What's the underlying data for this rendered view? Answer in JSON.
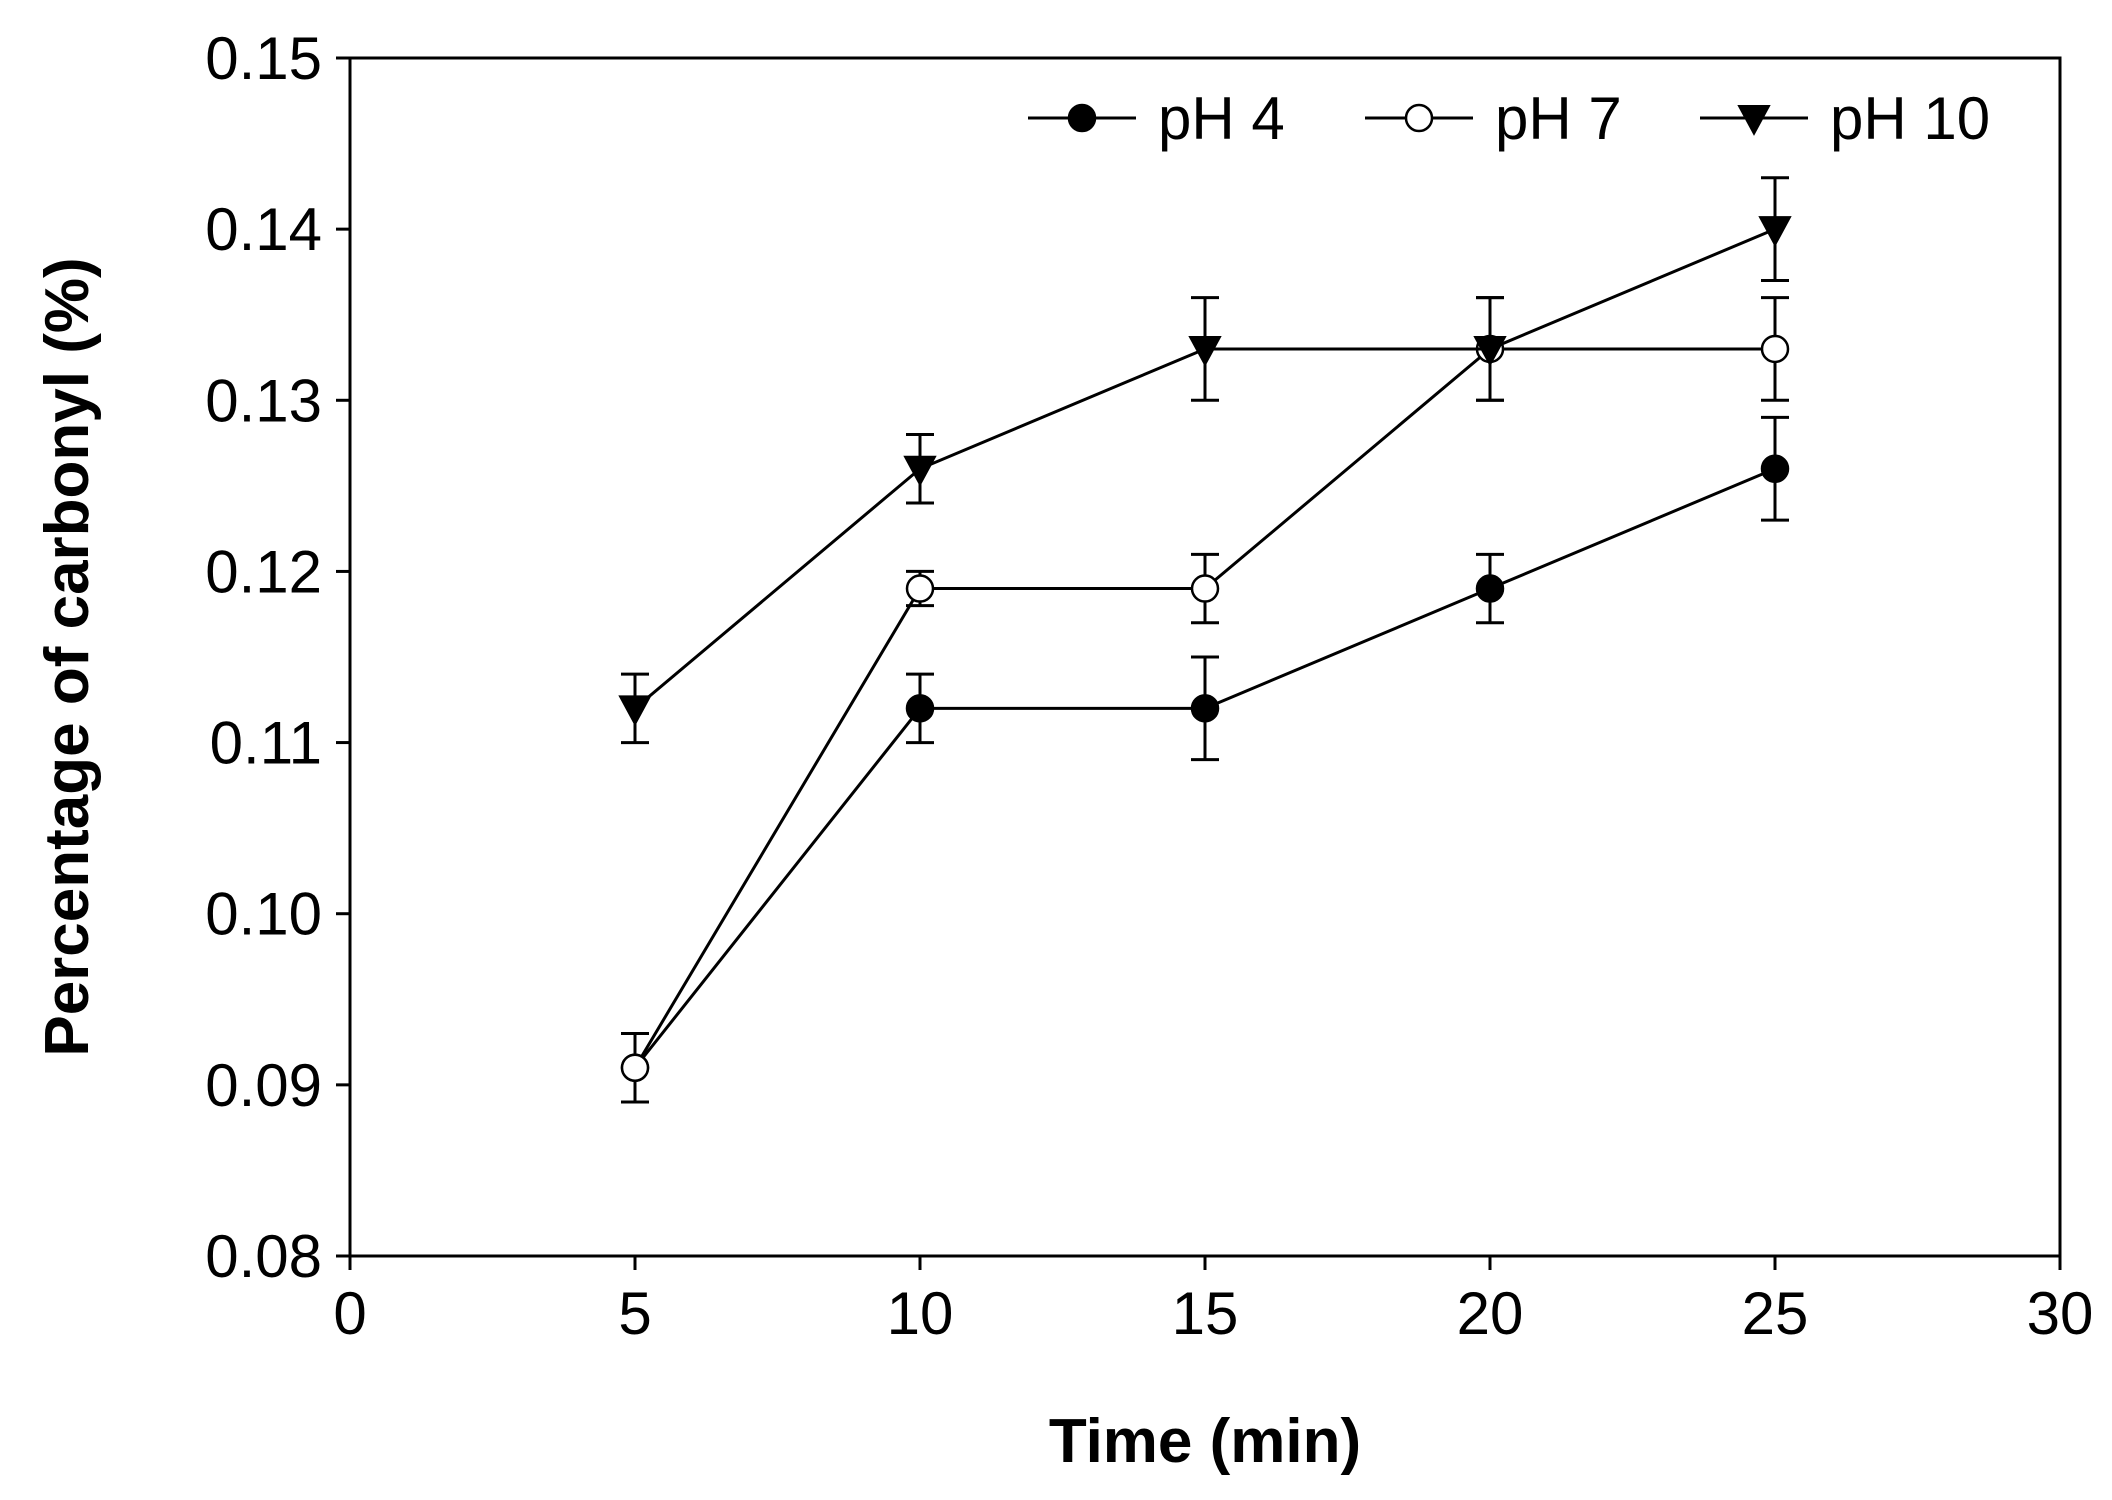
{
  "chart_data": {
    "type": "line",
    "title": "",
    "xlabel": "Time (min)",
    "ylabel": "Percentage of carbonyl (%)",
    "xlim": [
      0,
      30
    ],
    "ylim": [
      0.08,
      0.15
    ],
    "x_ticks": [
      "0",
      "5",
      "10",
      "15",
      "20",
      "25",
      "30"
    ],
    "y_ticks": [
      "0.08",
      "0.09",
      "0.10",
      "0.11",
      "0.12",
      "0.13",
      "0.14",
      "0.15"
    ],
    "x_tick_values": [
      0,
      5,
      10,
      15,
      20,
      25,
      30
    ],
    "y_tick_values": [
      0.08,
      0.09,
      0.1,
      0.11,
      0.12,
      0.13,
      0.14,
      0.15
    ],
    "grid": false,
    "legend_position": "top-right",
    "x": [
      5,
      10,
      15,
      20,
      25
    ],
    "series": [
      {
        "name": "pH 4",
        "marker": "filled-circle",
        "values": [
          0.091,
          0.112,
          0.112,
          0.119,
          0.126
        ],
        "errors": [
          0.002,
          0.002,
          0.003,
          0.002,
          0.003
        ]
      },
      {
        "name": "pH 7",
        "marker": "open-circle",
        "values": [
          0.091,
          0.119,
          0.119,
          0.133,
          0.133
        ],
        "errors": [
          0.002,
          0.001,
          0.002,
          0.003,
          0.003
        ]
      },
      {
        "name": "pH 10",
        "marker": "filled-triangle-down",
        "values": [
          0.112,
          0.126,
          0.133,
          0.133,
          0.14
        ],
        "errors": [
          0.002,
          0.002,
          0.003,
          0.003,
          0.003
        ]
      }
    ],
    "colors": {
      "line": "#000000",
      "marker_fill": "#000000",
      "open_fill": "#ffffff",
      "background": "#ffffff"
    }
  }
}
